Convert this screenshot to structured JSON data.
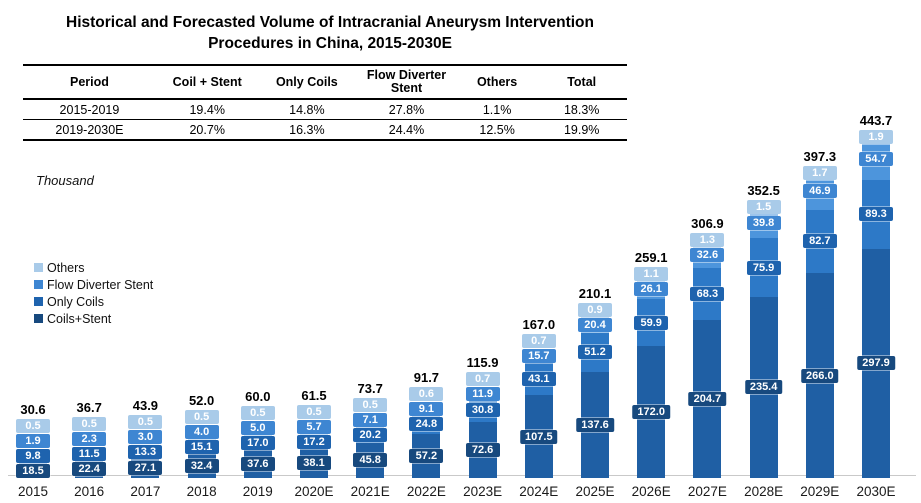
{
  "title": {
    "line1": "Historical and Forecasted Volume of Intracranial Aneurysm Intervention",
    "line2": "Procedures in China, 2015-2030E"
  },
  "table": {
    "headers": [
      "Period",
      "Coil + Stent",
      "Only Coils",
      "Flow Diverter Stent",
      "Others",
      "Total"
    ],
    "rows": [
      [
        "2015-2019",
        "19.4%",
        "14.8%",
        "27.8%",
        "1.1%",
        "18.3%"
      ],
      [
        "2019-2030E",
        "20.7%",
        "16.3%",
        "24.4%",
        "12.5%",
        "19.9%"
      ]
    ]
  },
  "unit_label": "Thousand",
  "legend": [
    {
      "label": "Others",
      "color": "#A9CBE9"
    },
    {
      "label": "Flow Diverter Stent",
      "color": "#3E86D2"
    },
    {
      "label": "Only Coils",
      "color": "#1E63AE"
    },
    {
      "label": "Coils+Stent",
      "color": "#17497E"
    }
  ],
  "chart_data": {
    "type": "bar",
    "stacked": true,
    "unit": "Thousand",
    "grid": false,
    "legend_position": "middle-left",
    "ylim": [
      0,
      460
    ],
    "categories": [
      "2015",
      "2016",
      "2017",
      "2018",
      "2019",
      "2020E",
      "2021E",
      "2022E",
      "2023E",
      "2024E",
      "2025E",
      "2026E",
      "2027E",
      "2028E",
      "2029E",
      "2030E"
    ],
    "series": [
      {
        "name": "Coils+Stent",
        "bar_color": "#1F5FA4",
        "chip_color": "#17497E",
        "values": [
          18.5,
          22.4,
          27.1,
          32.4,
          37.6,
          38.1,
          45.8,
          57.2,
          72.6,
          107.5,
          137.6,
          172.0,
          204.7,
          235.4,
          266.0,
          297.9
        ]
      },
      {
        "name": "Only Coils",
        "bar_color": "#2D79C7",
        "chip_color": "#1E63AE",
        "values": [
          9.8,
          11.5,
          13.3,
          15.1,
          17.0,
          17.2,
          20.2,
          24.8,
          30.8,
          43.1,
          51.2,
          59.9,
          68.3,
          75.9,
          82.7,
          89.3
        ]
      },
      {
        "name": "Flow Diverter Stent",
        "bar_color": "#4D95DC",
        "chip_color": "#3E86D2",
        "values": [
          1.9,
          2.3,
          3.0,
          4.0,
          5.0,
          5.7,
          7.1,
          9.1,
          11.9,
          15.7,
          20.4,
          26.1,
          32.6,
          39.8,
          46.9,
          54.7
        ]
      },
      {
        "name": "Others",
        "bar_color": "#BDD7EE",
        "chip_color": "#A9CBE9",
        "values": [
          0.5,
          0.5,
          0.5,
          0.5,
          0.5,
          0.5,
          0.5,
          0.6,
          0.7,
          0.7,
          0.9,
          1.1,
          1.3,
          1.5,
          1.7,
          1.9
        ]
      }
    ],
    "totals": [
      30.6,
      36.7,
      43.9,
      52.0,
      60.0,
      61.5,
      73.7,
      91.7,
      115.9,
      167.0,
      210.1,
      259.1,
      306.9,
      352.5,
      397.3,
      443.7
    ]
  }
}
